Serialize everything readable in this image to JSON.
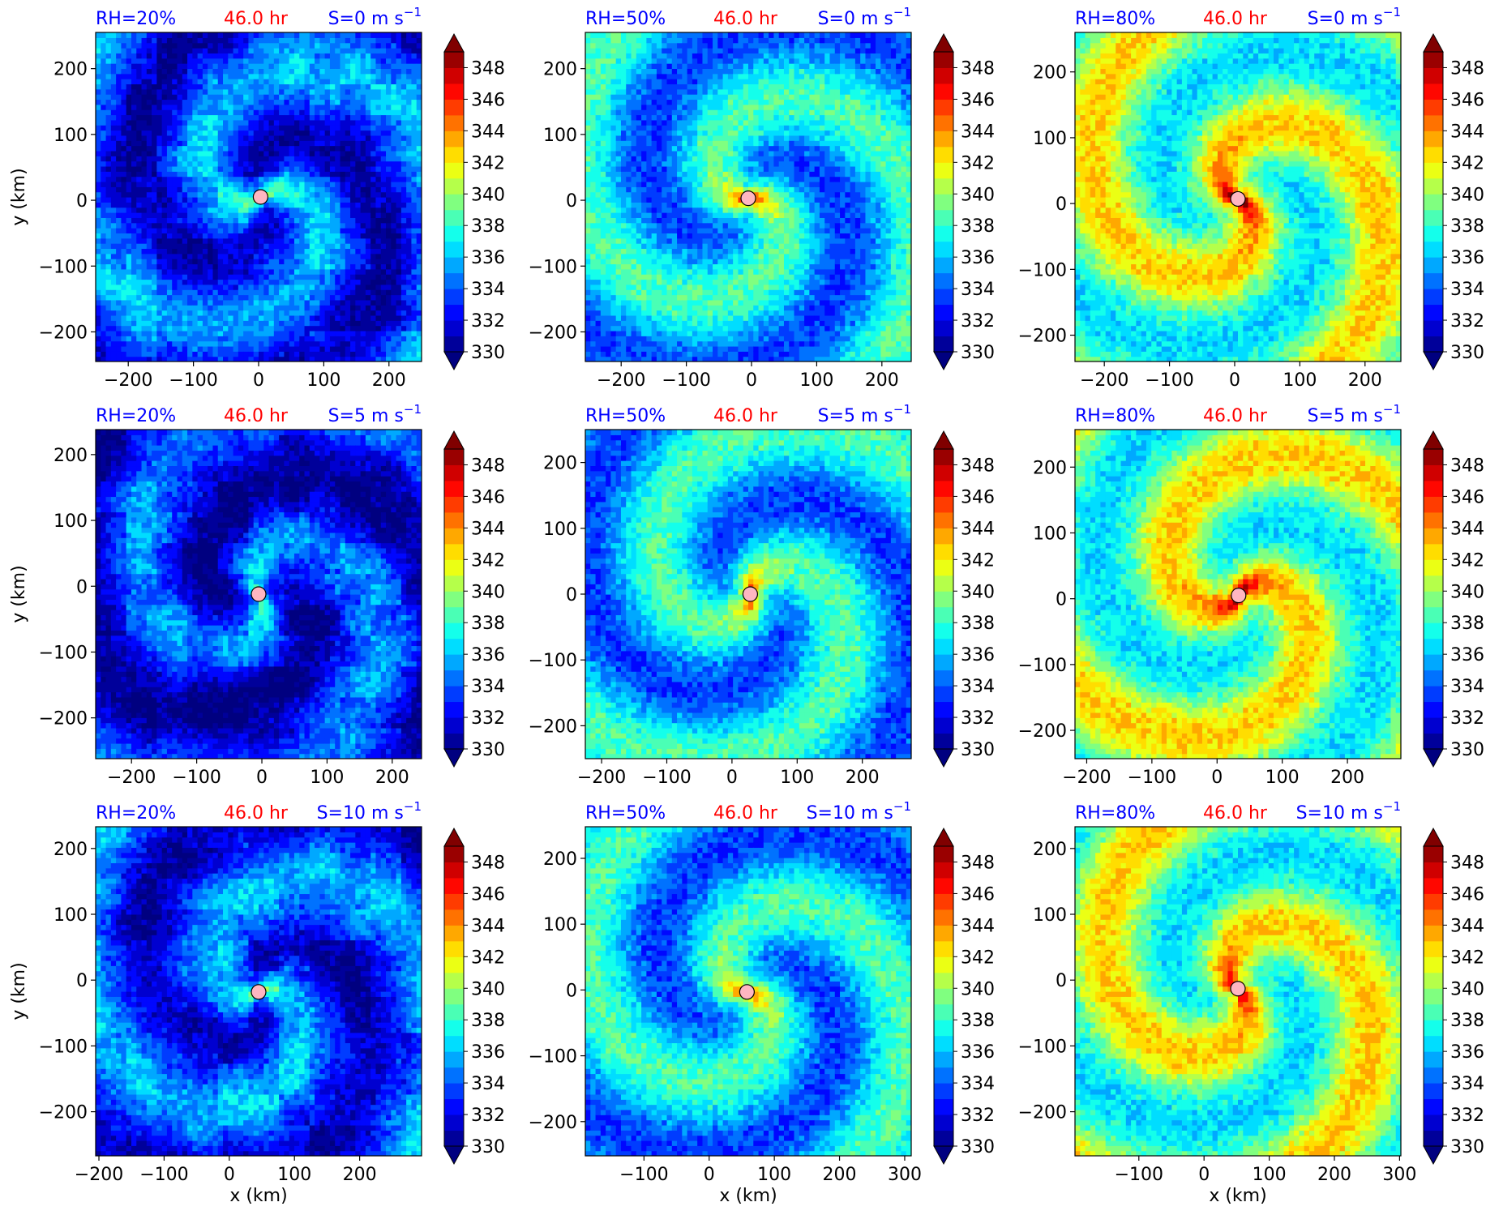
{
  "figure": {
    "time_label": "46.0 hr",
    "x_axis_label": "x (km)",
    "y_axis_label": "y (km)",
    "colors": {
      "rh_label": "#0000ff",
      "time_label": "#ff0000",
      "shear_label": "#0000ff",
      "center_marker_fill": "#ffb6c1",
      "center_marker_edge": "#000000"
    }
  },
  "colorbar": {
    "levels": [
      330,
      331,
      332,
      333,
      334,
      335,
      336,
      337,
      338,
      339,
      340,
      341,
      342,
      343,
      344,
      345,
      346,
      347,
      348,
      349
    ],
    "tick_labels": [
      "330",
      "332",
      "334",
      "336",
      "338",
      "340",
      "342",
      "344",
      "346",
      "348"
    ],
    "extend": "both",
    "colormap": "jet"
  },
  "chart_data": [
    {
      "type": "heatmap",
      "rh_label": "RH=20%",
      "time_label": "46.0 hr",
      "shear_label": "S=0 m s",
      "shear_exp": "−1",
      "xlim": [
        -250,
        250
      ],
      "ylim": [
        -245,
        255
      ],
      "xticks": [
        -200,
        -100,
        0,
        100,
        200
      ],
      "yticks": [
        -200,
        -100,
        0,
        100,
        200
      ],
      "center": [
        3,
        5
      ],
      "base_level": 334,
      "core_level": 339,
      "pattern": "weak-scattered",
      "show_xlabel": false,
      "show_ylabel": true
    },
    {
      "type": "heatmap",
      "rh_label": "RH=50%",
      "time_label": "46.0 hr",
      "shear_label": "S=0 m s",
      "shear_exp": "−1",
      "xlim": [
        -255,
        245
      ],
      "ylim": [
        -245,
        255
      ],
      "xticks": [
        -200,
        -100,
        0,
        100,
        200
      ],
      "yticks": [
        -200,
        -100,
        0,
        100,
        200
      ],
      "center": [
        -5,
        3
      ],
      "base_level": 336,
      "core_level": 346,
      "pattern": "spiral",
      "show_xlabel": false,
      "show_ylabel": false
    },
    {
      "type": "heatmap",
      "rh_label": "RH=80%",
      "time_label": "46.0 hr",
      "shear_label": "S=0 m s",
      "shear_exp": "−1",
      "xlim": [
        -245,
        255
      ],
      "ylim": [
        -240,
        260
      ],
      "xticks": [
        -200,
        -100,
        0,
        100,
        200
      ],
      "yticks": [
        -200,
        -100,
        0,
        100,
        200
      ],
      "center": [
        5,
        7
      ],
      "base_level": 339,
      "core_level": 349,
      "pattern": "intense",
      "show_xlabel": false,
      "show_ylabel": false
    },
    {
      "type": "heatmap",
      "rh_label": "RH=20%",
      "time_label": "46.0 hr",
      "shear_label": "S=5 m s",
      "shear_exp": "−1",
      "xlim": [
        -255,
        245
      ],
      "ylim": [
        -262,
        238
      ],
      "xticks": [
        -200,
        -100,
        0,
        100,
        200
      ],
      "yticks": [
        -200,
        -100,
        0,
        100,
        200
      ],
      "center": [
        -5,
        -12
      ],
      "base_level": 333,
      "core_level": 339,
      "pattern": "weak-scattered",
      "show_xlabel": false,
      "show_ylabel": true
    },
    {
      "type": "heatmap",
      "rh_label": "RH=50%",
      "time_label": "46.0 hr",
      "shear_label": "S=5 m s",
      "shear_exp": "−1",
      "xlim": [
        -225,
        275
      ],
      "ylim": [
        -250,
        250
      ],
      "xticks": [
        -200,
        -100,
        0,
        100,
        200
      ],
      "yticks": [
        -200,
        -100,
        0,
        100,
        200
      ],
      "center": [
        28,
        0
      ],
      "base_level": 336,
      "core_level": 346,
      "pattern": "spiral",
      "show_xlabel": false,
      "show_ylabel": false
    },
    {
      "type": "heatmap",
      "rh_label": "RH=80%",
      "time_label": "46.0 hr",
      "shear_label": "S=5 m s",
      "shear_exp": "−1",
      "xlim": [
        -218,
        282
      ],
      "ylim": [
        -243,
        257
      ],
      "xticks": [
        -200,
        -100,
        0,
        100,
        200
      ],
      "yticks": [
        -200,
        -100,
        0,
        100,
        200
      ],
      "center": [
        33,
        5
      ],
      "base_level": 339,
      "core_level": 349,
      "pattern": "intense",
      "show_xlabel": false,
      "show_ylabel": false
    },
    {
      "type": "heatmap",
      "rh_label": "RH=20%",
      "time_label": "46.0 hr",
      "shear_label": "S=10 m s",
      "shear_exp": "−1",
      "xlim": [
        -205,
        295
      ],
      "ylim": [
        -267,
        233
      ],
      "xticks": [
        -200,
        -100,
        0,
        100,
        200
      ],
      "yticks": [
        -200,
        -100,
        0,
        100,
        200
      ],
      "center": [
        45,
        -18
      ],
      "base_level": 334,
      "core_level": 339,
      "pattern": "weak-scattered",
      "show_xlabel": true,
      "show_ylabel": true
    },
    {
      "type": "heatmap",
      "rh_label": "RH=50%",
      "time_label": "46.0 hr",
      "shear_label": "S=10 m s",
      "shear_exp": "−1",
      "xlim": [
        -190,
        310
      ],
      "ylim": [
        -252,
        248
      ],
      "xticks": [
        -100,
        0,
        100,
        200,
        300
      ],
      "yticks": [
        -200,
        -100,
        0,
        100,
        200
      ],
      "center": [
        58,
        -3
      ],
      "base_level": 336,
      "core_level": 346,
      "pattern": "spiral",
      "show_xlabel": true,
      "show_ylabel": false
    },
    {
      "type": "heatmap",
      "rh_label": "RH=80%",
      "time_label": "46.0 hr",
      "shear_label": "S=10 m s",
      "shear_exp": "−1",
      "xlim": [
        -198,
        302
      ],
      "ylim": [
        -267,
        233
      ],
      "xticks": [
        -100,
        0,
        100,
        200,
        300
      ],
      "yticks": [
        -200,
        -100,
        0,
        100,
        200
      ],
      "center": [
        52,
        -13
      ],
      "base_level": 339,
      "core_level": 347,
      "pattern": "intense",
      "show_xlabel": true,
      "show_ylabel": false
    }
  ]
}
